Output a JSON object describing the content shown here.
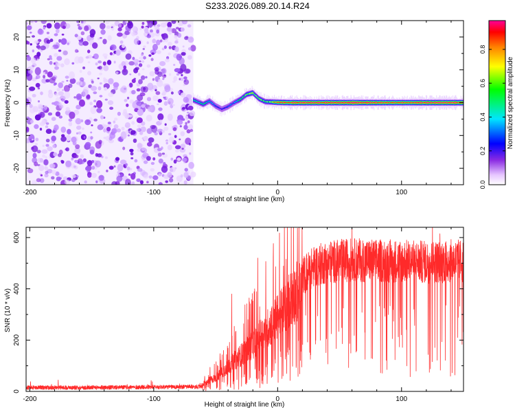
{
  "figure_title": "S233.2026.089.20.14.R24",
  "chart_data": [
    {
      "type": "heatmap",
      "title": "S233.2026.089.20.14.R24",
      "xlabel": "Height of straight line (km)",
      "ylabel": "Frequency (Hz)",
      "xlim": [
        -203,
        150
      ],
      "ylim": [
        -25,
        25
      ],
      "x_ticks": [
        -200,
        -100,
        0,
        100
      ],
      "y_ticks": [
        -20,
        -10,
        0,
        10,
        20
      ],
      "colorbar": {
        "label": "Normalized spectral amplitude",
        "range": [
          0,
          0.97
        ],
        "ticks": [
          0.0,
          0.2,
          0.4,
          0.6,
          0.8
        ],
        "colormap": [
          "#ffffff",
          "#e8c8ff",
          "#8a2be2",
          "#0000ff",
          "#00ffff",
          "#00ff00",
          "#ffff00",
          "#ff8000",
          "#ff0000",
          "#ff0099"
        ]
      },
      "noise_region_x": [
        -203,
        -68
      ],
      "noise_level": 0.15,
      "signal_track": {
        "x": [
          -68,
          -60,
          -55,
          -50,
          -45,
          -40,
          -35,
          -30,
          -25,
          -20,
          -15,
          -10,
          -5,
          0,
          10,
          20,
          40,
          60,
          80,
          100,
          120,
          150
        ],
        "frequency": [
          0.8,
          -0.5,
          0.5,
          -1.0,
          -2.0,
          -1.2,
          0.0,
          1.0,
          2.5,
          3.0,
          1.2,
          0.3,
          0.2,
          0.1,
          0.0,
          0.0,
          0.0,
          0.0,
          0.0,
          0.0,
          0.0,
          0.0
        ],
        "amplitude": [
          0.45,
          0.5,
          0.45,
          0.35,
          0.3,
          0.35,
          0.4,
          0.5,
          0.6,
          0.65,
          0.6,
          0.55,
          0.6,
          0.85,
          0.9,
          0.92,
          0.93,
          0.95,
          0.9,
          0.85,
          0.9,
          0.92
        ]
      }
    },
    {
      "type": "line",
      "xlabel": "Height of straight line (km)",
      "ylabel": "SNR (10 * v/v)",
      "xlim": [
        -203,
        150
      ],
      "ylim": [
        0,
        640
      ],
      "x_ticks": [
        -200,
        -100,
        0,
        100
      ],
      "y_ticks": [
        0,
        200,
        400,
        600
      ],
      "series": [
        {
          "name": "SNR",
          "color": "#ff2a2a",
          "x": [
            -203,
            -150,
            -100,
            -70,
            -62,
            -55,
            -50,
            -40,
            -30,
            -20,
            -10,
            0,
            10,
            20,
            30,
            40,
            60,
            80,
            100,
            120,
            140,
            150
          ],
          "base": [
            15,
            15,
            17,
            18,
            18,
            50,
            60,
            110,
            160,
            210,
            270,
            330,
            410,
            470,
            510,
            525,
            535,
            530,
            530,
            525,
            530,
            530
          ],
          "peaks": [
            {
              "x": -37,
              "y": 380
            },
            {
              "x": -16,
              "y": 520
            },
            {
              "x": 60,
              "y": 635
            },
            {
              "x": 125,
              "y": 640
            },
            {
              "x": 131,
              "y": 615
            }
          ]
        }
      ]
    }
  ]
}
